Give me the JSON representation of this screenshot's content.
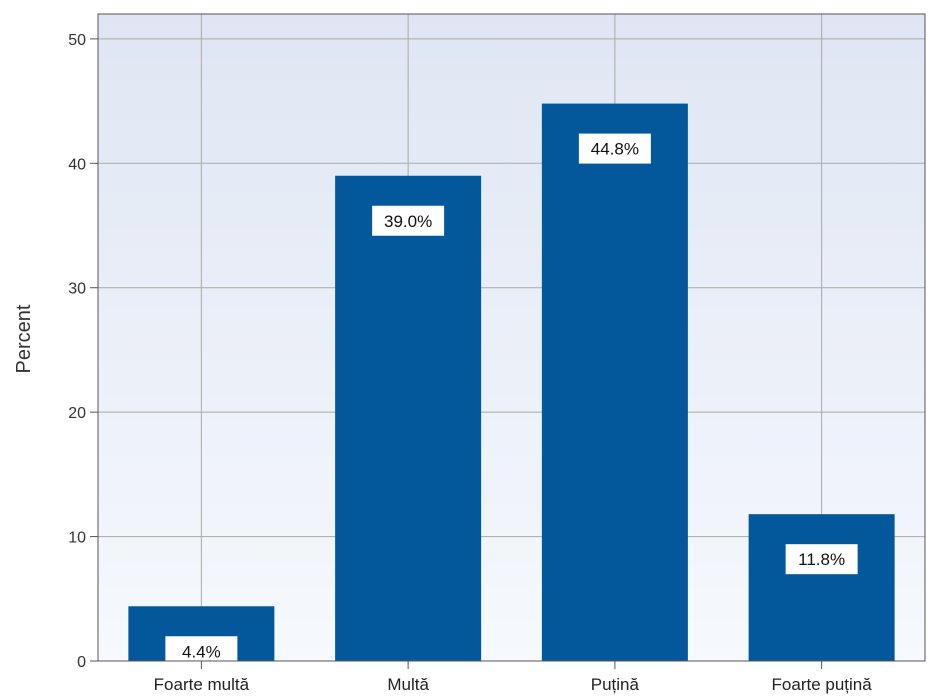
{
  "chart_data": {
    "type": "bar",
    "categories": [
      "Foarte multă",
      "Multă",
      "Puțină",
      "Foarte puțină"
    ],
    "values": [
      4.4,
      39.0,
      44.8,
      11.8
    ],
    "data_labels": [
      "4.4%",
      "39.0%",
      "44.8%",
      "11.8%"
    ],
    "title": "",
    "xlabel": "",
    "ylabel": "Percent",
    "ylim": [
      0,
      52
    ],
    "yticks": [
      0,
      10,
      20,
      30,
      40,
      50
    ],
    "ytick_labels": [
      "0",
      "10",
      "20",
      "30",
      "40",
      "50"
    ],
    "grid": true,
    "legend": "none"
  },
  "colors": {
    "bar": "#03589c",
    "grid": "#a9a9a9",
    "background_top": "#dfe6f3",
    "background_bottom": "#f6f9fd",
    "label_box": "#ffffff",
    "axis": "#555555"
  }
}
